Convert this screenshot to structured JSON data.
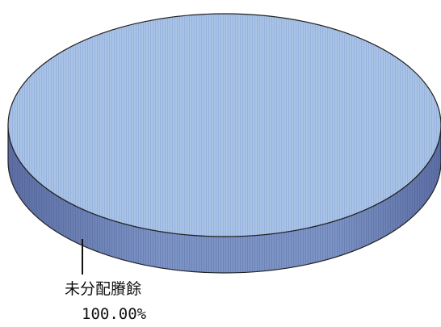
{
  "chart_data": {
    "type": "pie",
    "style": "3d",
    "slices": [
      {
        "label": "未分配賸餘",
        "value": 100.0,
        "value_label": "100.00%",
        "top_color": "#a9c3e6",
        "side_color": "#7d94c6",
        "side_shadow_color": "#5c6ea3"
      }
    ],
    "legend": "none"
  }
}
